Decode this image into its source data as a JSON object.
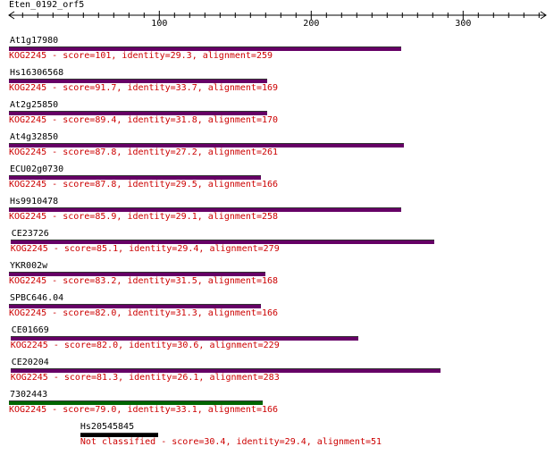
{
  "query": {
    "name": "Eten_0192_orf5"
  },
  "axis": {
    "ticks": [
      {
        "label": "100"
      },
      {
        "label": "200"
      },
      {
        "label": "300"
      }
    ]
  },
  "colors": {
    "hit_bar": "#660066",
    "top_hit_bar": "#006600",
    "unclassified_bar": "#000000",
    "desc_text": "#cc0000"
  },
  "hits": [
    {
      "name": "At1g17980",
      "desc": "KOG2245 - score=101, identity=29.3, alignment=259",
      "start": 1,
      "end": 259,
      "kind": "kog"
    },
    {
      "name": "Hs16306568",
      "desc": "KOG2245 - score=91.7, identity=33.7, alignment=169",
      "start": 1,
      "end": 171,
      "kind": "kog"
    },
    {
      "name": "At2g25850",
      "desc": "KOG2245 - score=89.4, identity=31.8, alignment=170",
      "start": 1,
      "end": 171,
      "kind": "kog"
    },
    {
      "name": "At4g32850",
      "desc": "KOG2245 - score=87.8, identity=27.2, alignment=261",
      "start": 1,
      "end": 261,
      "kind": "kog"
    },
    {
      "name": "ECU02g0730",
      "desc": "KOG2245 - score=87.8, identity=29.5, alignment=166",
      "start": 1,
      "end": 167,
      "kind": "kog"
    },
    {
      "name": "Hs9910478",
      "desc": "KOG2245 - score=85.9, identity=29.1, alignment=258",
      "start": 1,
      "end": 259,
      "kind": "kog"
    },
    {
      "name": "CE23726",
      "desc": "KOG2245 - score=85.1, identity=29.4, alignment=279",
      "start": 2,
      "end": 281,
      "kind": "kog"
    },
    {
      "name": "YKR002w",
      "desc": "KOG2245 - score=83.2, identity=31.5, alignment=168",
      "start": 1,
      "end": 170,
      "kind": "kog"
    },
    {
      "name": "SPBC646.04",
      "desc": "KOG2245 - score=82.0, identity=31.3, alignment=166",
      "start": 1,
      "end": 167,
      "kind": "kog"
    },
    {
      "name": "CE01669",
      "desc": "KOG2245 - score=82.0, identity=30.6, alignment=229",
      "start": 2,
      "end": 231,
      "kind": "kog"
    },
    {
      "name": "CE20204",
      "desc": "KOG2245 - score=81.3, identity=26.1, alignment=283",
      "start": 2,
      "end": 285,
      "kind": "kog"
    },
    {
      "name": "7302443",
      "desc": "KOG2245 - score=79.0, identity=33.1, alignment=166",
      "start": 1,
      "end": 168,
      "kind": "top"
    },
    {
      "name": "Hs20545845",
      "desc": "Not classified - score=30.4, identity=29.4, alignment=51",
      "start": 48,
      "end": 99,
      "kind": "unclassified"
    }
  ]
}
